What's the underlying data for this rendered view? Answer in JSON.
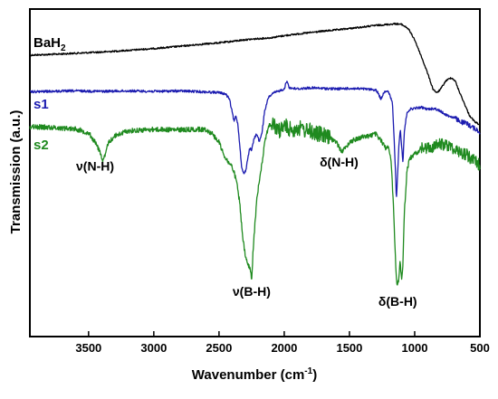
{
  "chart_data": {
    "type": "line",
    "xlabel": "Wavenumber",
    "xlabel_unit_base": "(cm",
    "xlabel_unit_exp": "-1",
    "xlabel_unit_end": ")",
    "ylabel": "Transmission (a.u.)",
    "xlim": [
      3950,
      500
    ],
    "x_reversed": true,
    "ticks": [
      "3500",
      "3000",
      "2500",
      "2000",
      "1500",
      "1000",
      "500"
    ],
    "grid": false,
    "series": [
      {
        "name": "BaH",
        "name_sub": "2",
        "color": "#000000",
        "points": [
          [
            3950,
            0.875
          ],
          [
            3800,
            0.872
          ],
          [
            3600,
            0.866
          ],
          [
            3400,
            0.86
          ],
          [
            3200,
            0.852
          ],
          [
            3000,
            0.843
          ],
          [
            2800,
            0.832
          ],
          [
            2600,
            0.82
          ],
          [
            2500,
            0.815
          ],
          [
            2400,
            0.808
          ],
          [
            2300,
            0.8
          ],
          [
            2200,
            0.795
          ],
          [
            2100,
            0.79
          ],
          [
            2000,
            0.78
          ],
          [
            1900,
            0.772
          ],
          [
            1800,
            0.765
          ],
          [
            1700,
            0.758
          ],
          [
            1600,
            0.752
          ],
          [
            1500,
            0.745
          ],
          [
            1400,
            0.738
          ],
          [
            1300,
            0.73
          ],
          [
            1200,
            0.725
          ],
          [
            1150,
            0.722
          ],
          [
            1100,
            0.725
          ],
          [
            1050,
            0.745
          ],
          [
            1000,
            0.8
          ],
          [
            950,
            0.88
          ],
          [
            900,
            0.965
          ],
          [
            860,
            1.04
          ],
          [
            830,
            1.06
          ],
          [
            800,
            1.04
          ],
          [
            760,
            1.0
          ],
          [
            720,
            0.985
          ],
          [
            690,
            1.0
          ],
          [
            660,
            1.05
          ],
          [
            620,
            1.11
          ],
          [
            580,
            1.17
          ],
          [
            540,
            1.2
          ],
          [
            500,
            1.215
          ]
        ]
      },
      {
        "name": "s1",
        "color": "#1c1cb0",
        "points": [
          [
            3950,
            1.055
          ],
          [
            3800,
            1.052
          ],
          [
            3600,
            1.05
          ],
          [
            3400,
            1.052
          ],
          [
            3200,
            1.05
          ],
          [
            3000,
            1.052
          ],
          [
            2800,
            1.05
          ],
          [
            2600,
            1.055
          ],
          [
            2500,
            1.058
          ],
          [
            2450,
            1.065
          ],
          [
            2420,
            1.09
          ],
          [
            2400,
            1.15
          ],
          [
            2385,
            1.2
          ],
          [
            2370,
            1.17
          ],
          [
            2355,
            1.215
          ],
          [
            2340,
            1.32
          ],
          [
            2325,
            1.43
          ],
          [
            2310,
            1.455
          ],
          [
            2295,
            1.44
          ],
          [
            2280,
            1.38
          ],
          [
            2265,
            1.33
          ],
          [
            2250,
            1.34
          ],
          [
            2230,
            1.28
          ],
          [
            2210,
            1.26
          ],
          [
            2190,
            1.3
          ],
          [
            2170,
            1.25
          ],
          [
            2150,
            1.15
          ],
          [
            2120,
            1.08
          ],
          [
            2080,
            1.06
          ],
          [
            2040,
            1.05
          ],
          [
            2000,
            1.04
          ],
          [
            1980,
            1.0
          ],
          [
            1960,
            1.035
          ],
          [
            1900,
            1.04
          ],
          [
            1800,
            1.035
          ],
          [
            1700,
            1.038
          ],
          [
            1600,
            1.04
          ],
          [
            1500,
            1.038
          ],
          [
            1400,
            1.04
          ],
          [
            1300,
            1.045
          ],
          [
            1280,
            1.06
          ],
          [
            1260,
            1.09
          ],
          [
            1245,
            1.07
          ],
          [
            1230,
            1.05
          ],
          [
            1200,
            1.055
          ],
          [
            1170,
            1.11
          ],
          [
            1150,
            1.4
          ],
          [
            1140,
            1.58
          ],
          [
            1130,
            1.45
          ],
          [
            1120,
            1.3
          ],
          [
            1110,
            1.24
          ],
          [
            1100,
            1.32
          ],
          [
            1090,
            1.4
          ],
          [
            1080,
            1.25
          ],
          [
            1060,
            1.16
          ],
          [
            1040,
            1.14
          ],
          [
            1000,
            1.135
          ],
          [
            950,
            1.13
          ],
          [
            900,
            1.14
          ],
          [
            850,
            1.135
          ],
          [
            800,
            1.15
          ],
          [
            750,
            1.17
          ],
          [
            700,
            1.18
          ],
          [
            650,
            1.2
          ],
          [
            600,
            1.21
          ],
          [
            550,
            1.23
          ],
          [
            500,
            1.25
          ]
        ]
      },
      {
        "name": "s2",
        "color": "#1f8a1f",
        "points": [
          [
            3950,
            1.225
          ],
          [
            3800,
            1.228
          ],
          [
            3700,
            1.232
          ],
          [
            3600,
            1.235
          ],
          [
            3500,
            1.255
          ],
          [
            3450,
            1.3
          ],
          [
            3410,
            1.35
          ],
          [
            3390,
            1.395
          ],
          [
            3370,
            1.36
          ],
          [
            3350,
            1.305
          ],
          [
            3300,
            1.27
          ],
          [
            3200,
            1.245
          ],
          [
            3000,
            1.238
          ],
          [
            2800,
            1.24
          ],
          [
            2700,
            1.238
          ],
          [
            2600,
            1.238
          ],
          [
            2550,
            1.26
          ],
          [
            2500,
            1.3
          ],
          [
            2450,
            1.38
          ],
          [
            2400,
            1.42
          ],
          [
            2370,
            1.48
          ],
          [
            2340,
            1.6
          ],
          [
            2320,
            1.76
          ],
          [
            2300,
            1.85
          ],
          [
            2280,
            1.9
          ],
          [
            2260,
            1.92
          ],
          [
            2250,
            1.98
          ],
          [
            2240,
            1.85
          ],
          [
            2225,
            1.7
          ],
          [
            2210,
            1.58
          ],
          [
            2190,
            1.48
          ],
          [
            2170,
            1.4
          ],
          [
            2150,
            1.3
          ],
          [
            2120,
            1.22
          ],
          [
            2080,
            1.215
          ],
          [
            2050,
            1.25
          ],
          [
            2000,
            1.22
          ],
          [
            1950,
            1.24
          ],
          [
            1900,
            1.23
          ],
          [
            1850,
            1.24
          ],
          [
            1800,
            1.245
          ],
          [
            1750,
            1.26
          ],
          [
            1700,
            1.265
          ],
          [
            1650,
            1.28
          ],
          [
            1600,
            1.3
          ],
          [
            1560,
            1.345
          ],
          [
            1530,
            1.33
          ],
          [
            1500,
            1.3
          ],
          [
            1450,
            1.285
          ],
          [
            1400,
            1.275
          ],
          [
            1350,
            1.27
          ],
          [
            1300,
            1.26
          ],
          [
            1250,
            1.3
          ],
          [
            1220,
            1.33
          ],
          [
            1200,
            1.315
          ],
          [
            1180,
            1.4
          ],
          [
            1160,
            1.65
          ],
          [
            1145,
            1.92
          ],
          [
            1135,
            2.0
          ],
          [
            1125,
            1.98
          ],
          [
            1110,
            1.88
          ],
          [
            1100,
            1.98
          ],
          [
            1090,
            1.9
          ],
          [
            1080,
            1.65
          ],
          [
            1060,
            1.45
          ],
          [
            1040,
            1.38
          ],
          [
            1000,
            1.36
          ],
          [
            950,
            1.33
          ],
          [
            900,
            1.33
          ],
          [
            850,
            1.32
          ],
          [
            800,
            1.31
          ],
          [
            750,
            1.315
          ],
          [
            700,
            1.33
          ],
          [
            650,
            1.35
          ],
          [
            600,
            1.36
          ],
          [
            550,
            1.39
          ],
          [
            500,
            1.41
          ]
        ]
      }
    ],
    "annotations": [
      {
        "text": "ν(N-H)",
        "x": 3450,
        "y": 1.44
      },
      {
        "text": "ν(B-H)",
        "x": 2250,
        "y": 2.05
      },
      {
        "text": "δ(N-H)",
        "x": 1580,
        "y": 1.42
      },
      {
        "text": "δ(B-H)",
        "x": 1130,
        "y": 2.1
      }
    ]
  }
}
